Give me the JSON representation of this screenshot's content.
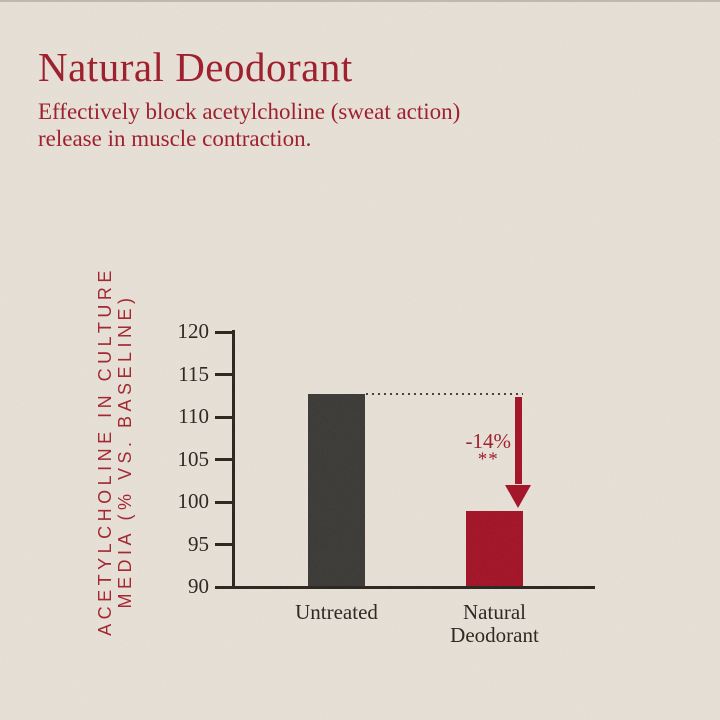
{
  "page": {
    "title": "Natural Deodorant",
    "subtitle_line1": "Effectively block acetylcholine (sweat action)",
    "subtitle_line2": "release in muscle contraction."
  },
  "colors": {
    "background": "#e8e1d7",
    "accent_red_text": "#9e1c2b",
    "bar_dark": "#3b3936",
    "bar_red": "#a31227",
    "axis": "#29251f"
  },
  "chart_data": {
    "type": "bar",
    "title": "",
    "categories": [
      "Untreated",
      "Natural Deodorant"
    ],
    "values": [
      112.7,
      99
    ],
    "bar_colors": [
      "#3b3936",
      "#a31227"
    ],
    "ylabel_line1": "ACETYLCHOLINE IN CULTURE",
    "ylabel_line2": "MEDIA (% VS. BASELINE)",
    "xlabel": "",
    "ylim": [
      90,
      120
    ],
    "yticks": [
      120,
      115,
      110,
      105,
      100,
      95,
      90
    ],
    "grid": false,
    "legend": false,
    "annotation": {
      "delta_label": "-14%",
      "significance": "**"
    }
  }
}
